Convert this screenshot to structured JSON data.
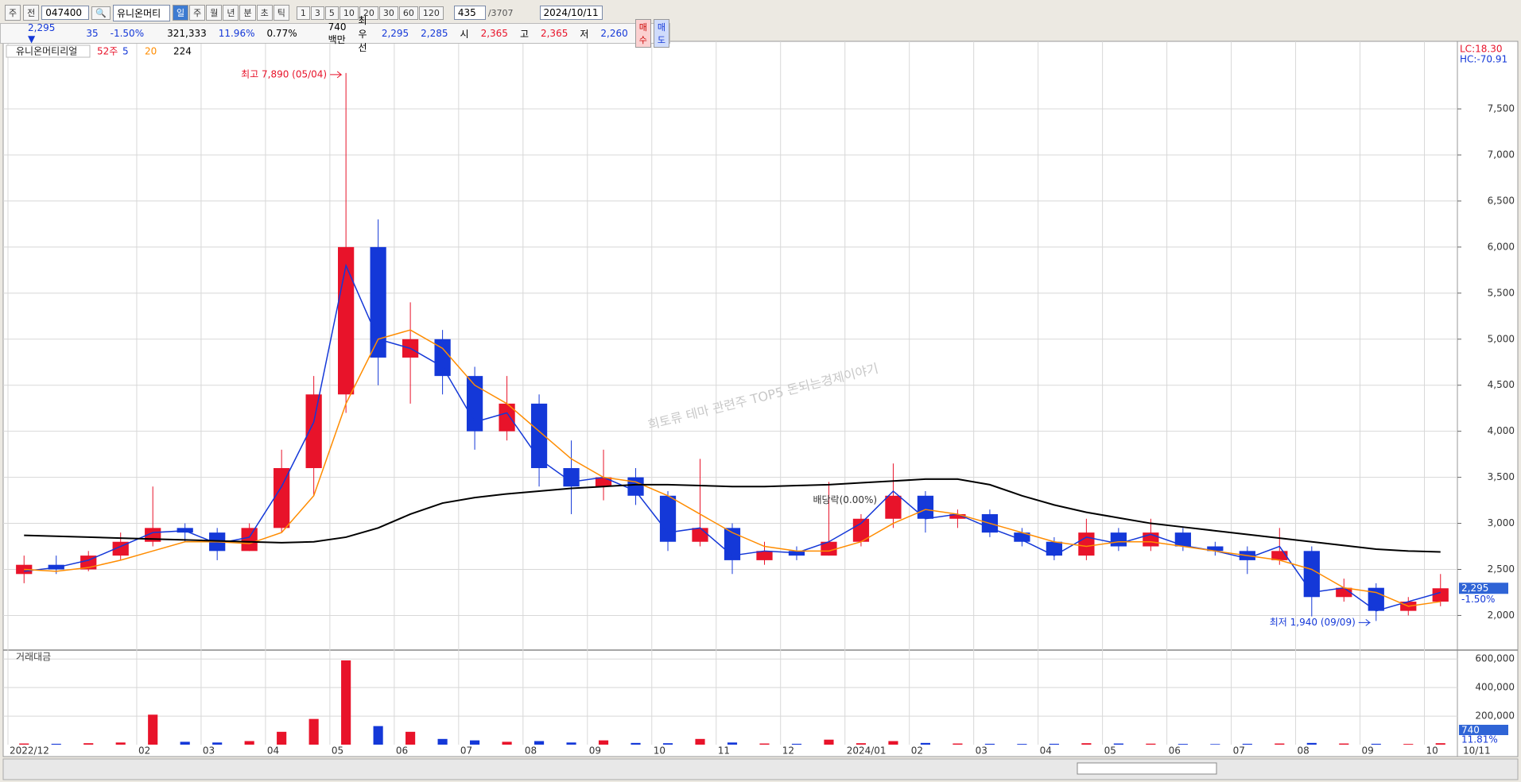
{
  "toolbar": {
    "left_buttons": [
      "주",
      "전"
    ],
    "code": "047400",
    "name": "유니온머티",
    "period_buttons": [
      "일",
      "주",
      "월",
      "년",
      "분",
      "초",
      "틱"
    ],
    "interval_buttons": [
      "1",
      "3",
      "5",
      "10",
      "20",
      "30",
      "60",
      "120"
    ],
    "count": "435",
    "total": "/3707",
    "date": "2024/10/11"
  },
  "info_bar": {
    "price": "2,295 ▼",
    "change": "35",
    "change_pct": "-1.50%",
    "volume": "321,333",
    "turnover": "11.96%",
    "ratio": "0.77%",
    "amount": "740백만",
    "best_label": "최우선",
    "ask": "2,295",
    "bid": "2,285",
    "open_label": "시",
    "open": "2,365",
    "high_label": "고",
    "high": "2,365",
    "low_label": "저",
    "low": "2,260",
    "buy": "매수",
    "sell": "매도"
  },
  "chart_data": [
    {
      "type": "candlestick",
      "title": "유니온머티리얼",
      "legend_prefix": "52주",
      "categories": [
        "2022/12",
        null,
        null,
        null,
        "02",
        null,
        "03",
        null,
        "04",
        null,
        "05",
        null,
        "06",
        null,
        "07",
        null,
        "08",
        null,
        "09",
        null,
        "10",
        null,
        "11",
        null,
        "12",
        null,
        "2024/01",
        null,
        "02",
        null,
        "03",
        null,
        "04",
        null,
        "05",
        null,
        "06",
        null,
        "07",
        null,
        "08",
        null,
        "09",
        null,
        "10"
      ],
      "open": [
        2450,
        2550,
        2500,
        2650,
        2800,
        2950,
        2900,
        2700,
        2950,
        3600,
        4400,
        6000,
        4800,
        5000,
        4600,
        4000,
        4300,
        3600,
        3400,
        3500,
        3300,
        2800,
        2950,
        2600,
        2700,
        2650,
        2800,
        3050,
        3300,
        3050,
        3100,
        2900,
        2800,
        2650,
        2900,
        2750,
        2900,
        2750,
        2700,
        2600,
        2700,
        2200,
        2300,
        2050,
        2150
      ],
      "high": [
        2650,
        2650,
        2700,
        2900,
        3400,
        3000,
        2950,
        3000,
        3800,
        4600,
        7890,
        6300,
        5400,
        5100,
        4700,
        4600,
        4400,
        3900,
        3800,
        3600,
        3350,
        3700,
        3000,
        2800,
        2750,
        3450,
        3100,
        3650,
        3350,
        3150,
        3150,
        2950,
        2850,
        3050,
        2950,
        3050,
        2950,
        2800,
        2750,
        2950,
        2750,
        2400,
        2350,
        2200,
        2450
      ],
      "low": [
        2350,
        2450,
        2480,
        2600,
        2750,
        2800,
        2600,
        2700,
        2900,
        3300,
        4200,
        4500,
        4300,
        4400,
        3800,
        3900,
        3400,
        3100,
        3250,
        3200,
        2700,
        2750,
        2450,
        2550,
        2600,
        2650,
        2750,
        2950,
        2900,
        2950,
        2850,
        2750,
        2600,
        2600,
        2700,
        2700,
        2700,
        2650,
        2450,
        2550,
        1990,
        2150,
        1940,
        2000,
        2100
      ],
      "close": [
        2550,
        2500,
        2650,
        2800,
        2950,
        2900,
        2700,
        2950,
        3600,
        4400,
        6000,
        4800,
        5000,
        4600,
        4000,
        4300,
        3600,
        3400,
        3500,
        3300,
        2800,
        2950,
        2600,
        2700,
        2650,
        2800,
        3050,
        3300,
        3050,
        3100,
        2900,
        2800,
        2650,
        2900,
        2750,
        2900,
        2750,
        2700,
        2600,
        2700,
        2200,
        2300,
        2050,
        2150,
        2295
      ],
      "up_color": "#e8132a",
      "down_color": "#1438d8",
      "series": [
        {
          "name": "5",
          "color": "#1438d8",
          "values": [
            2480,
            2520,
            2600,
            2750,
            2900,
            2920,
            2780,
            2850,
            3400,
            4100,
            5800,
            5000,
            4900,
            4700,
            4100,
            4200,
            3700,
            3450,
            3500,
            3350,
            2900,
            2950,
            2650,
            2700,
            2680,
            2800,
            3000,
            3350,
            3050,
            3100,
            2950,
            2820,
            2650,
            2850,
            2780,
            2880,
            2760,
            2700,
            2620,
            2750,
            2250,
            2300,
            2050,
            2150,
            2250
          ]
        },
        {
          "name": "20",
          "color": "#ff8c00",
          "values": [
            2500,
            2480,
            2520,
            2600,
            2700,
            2800,
            2800,
            2780,
            2900,
            3300,
            4300,
            5000,
            5100,
            4900,
            4500,
            4300,
            4000,
            3700,
            3500,
            3450,
            3300,
            3100,
            2900,
            2750,
            2700,
            2700,
            2800,
            3000,
            3150,
            3100,
            3000,
            2900,
            2800,
            2750,
            2800,
            2800,
            2750,
            2700,
            2650,
            2600,
            2500,
            2300,
            2250,
            2100,
            2150
          ]
        },
        {
          "name": "224",
          "color": "#000000",
          "values": [
            2870,
            2860,
            2850,
            2840,
            2830,
            2820,
            2810,
            2800,
            2790,
            2800,
            2850,
            2950,
            3100,
            3220,
            3280,
            3320,
            3350,
            3380,
            3400,
            3420,
            3420,
            3410,
            3400,
            3400,
            3410,
            3420,
            3440,
            3460,
            3480,
            3480,
            3420,
            3300,
            3200,
            3120,
            3060,
            3000,
            2960,
            2920,
            2880,
            2840,
            2800,
            2760,
            2720,
            2700,
            2690
          ]
        }
      ],
      "ylim": [
        1650,
        7975
      ],
      "yticks": [
        {
          "value": 2000,
          "label": "2,000"
        },
        {
          "value": 2500,
          "label": "2,500"
        },
        {
          "value": 3000,
          "label": "3,000"
        },
        {
          "value": 3500,
          "label": "3,500"
        },
        {
          "value": 4000,
          "label": "4,000"
        },
        {
          "value": 4500,
          "label": "4,500"
        },
        {
          "value": 5000,
          "label": "5,000"
        },
        {
          "value": 5500,
          "label": "5,500"
        },
        {
          "value": 6000,
          "label": "6,000"
        },
        {
          "value": 6500,
          "label": "6,500"
        },
        {
          "value": 7000,
          "label": "7,000"
        },
        {
          "value": 7500,
          "label": "7,500"
        }
      ],
      "grid": true,
      "high_label": "최고 7,890 (05/04)",
      "low_label": "최저 1,940 (09/09)",
      "dividend_label": "배당락(0.00%)",
      "watermark": "희토류 테마 관련주 TOP5 돈되는경제이야기",
      "lc_label": "LC:18.30",
      "hc_label": "HC:-70.91",
      "last_price": {
        "value": 2295,
        "label": "2,295"
      },
      "last_change": "-1.50%",
      "end_label": "10/11"
    },
    {
      "type": "bar",
      "title": "거래대금",
      "values": [
        8000,
        6000,
        10000,
        15000,
        210000,
        20000,
        15000,
        25000,
        90000,
        180000,
        590000,
        130000,
        90000,
        40000,
        30000,
        20000,
        25000,
        15000,
        30000,
        12000,
        10000,
        40000,
        15000,
        8000,
        6000,
        35000,
        10000,
        25000,
        12000,
        8000,
        6000,
        5000,
        6000,
        10000,
        8000,
        7000,
        5000,
        4000,
        6000,
        8000,
        12000,
        8000,
        6000,
        5000,
        10000
      ],
      "ylim": [
        0,
        640000
      ],
      "yticks": [
        {
          "value": 200000,
          "label": "200,000"
        },
        {
          "value": 400000,
          "label": "400,000"
        },
        {
          "value": 600000,
          "label": "600,000"
        }
      ],
      "last_label": "740",
      "ratio_label": "11.81%"
    }
  ]
}
